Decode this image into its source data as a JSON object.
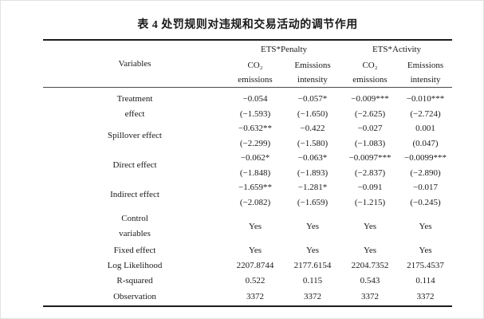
{
  "title": "表 4 处罚规则对违规和交易活动的调节作用",
  "table": {
    "variables_header": "Variables",
    "col_groups": [
      {
        "label": "ETS*Penalty"
      },
      {
        "label": "ETS*Activity"
      }
    ],
    "sub_headers": [
      {
        "line1": "CO₂",
        "line2": "emissions"
      },
      {
        "line1": "Emissions",
        "line2": "intensity"
      },
      {
        "line1": "CO₂",
        "line2": "emissions"
      },
      {
        "line1": "Emissions",
        "line2": "intensity"
      }
    ],
    "effect_blocks": [
      {
        "label_line1": "Treatment",
        "label_line2": "effect",
        "coef": [
          "−0.054",
          "−0.057*",
          "−0.009***",
          "−0.010***"
        ],
        "tstat": [
          "(−1.593)",
          "(−1.650)",
          "(−2.625)",
          "(−2.724)"
        ]
      },
      {
        "label_line1": "Spillover effect",
        "coef": [
          "−0.632**",
          "−0.422",
          "−0.027",
          "0.001"
        ],
        "tstat": [
          "(−2.299)",
          "(−1.580)",
          "(−1.083)",
          "(0.047)"
        ]
      },
      {
        "label_line1": "Direct effect",
        "coef": [
          "−0.062*",
          "−0.063*",
          "−0.0097***",
          "−0.0099***"
        ],
        "tstat": [
          "(−1.848)",
          "(−1.893)",
          "(−2.837)",
          "(−2.890)"
        ]
      },
      {
        "label_line1": "Indirect effect",
        "coef": [
          "−1.659**",
          "−1.281*",
          "−0.091",
          "−0.017"
        ],
        "tstat": [
          "(−2.082)",
          "(−1.659)",
          "(−1.215)",
          "(−0.245)"
        ]
      }
    ],
    "summary_rows": [
      {
        "label_line1": "Control",
        "label_line2": "variables",
        "values": [
          "Yes",
          "Yes",
          "Yes",
          "Yes"
        ]
      },
      {
        "label_line1": "Fixed effect",
        "values": [
          "Yes",
          "Yes",
          "Yes",
          "Yes"
        ]
      },
      {
        "label_line1": "Log Likelihood",
        "values": [
          "2207.8744",
          "2177.6154",
          "2204.7352",
          "2175.4537"
        ]
      },
      {
        "label_line1": "R-squared",
        "values": [
          "0.522",
          "0.115",
          "0.543",
          "0.114"
        ]
      },
      {
        "label_line1": "Observation",
        "values": [
          "3372",
          "3372",
          "3372",
          "3372"
        ]
      }
    ]
  }
}
